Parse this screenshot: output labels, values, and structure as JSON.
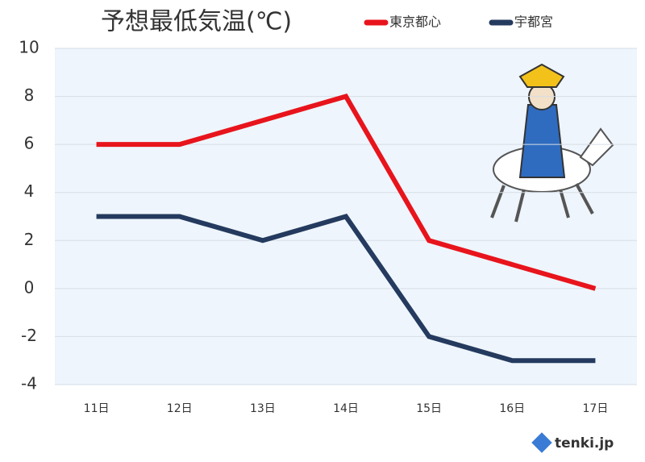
{
  "chart_data": {
    "type": "line",
    "title": "予想最低気温(℃)",
    "categories": [
      "11日",
      "12日",
      "13日",
      "14日",
      "15日",
      "16日",
      "17日"
    ],
    "series": [
      {
        "name": "東京都心",
        "color": "#e8141c",
        "values": [
          6,
          6,
          7,
          8,
          2,
          1,
          0
        ]
      },
      {
        "name": "宇都宮",
        "color": "#243a5e",
        "values": [
          3,
          3,
          2,
          3,
          -2,
          -3,
          -3
        ]
      }
    ],
    "ylim": [
      -4,
      10
    ],
    "yticks": [
      -4,
      -2,
      0,
      2,
      4,
      6,
      8,
      10
    ],
    "grid": true,
    "source": "tenki.jp"
  }
}
